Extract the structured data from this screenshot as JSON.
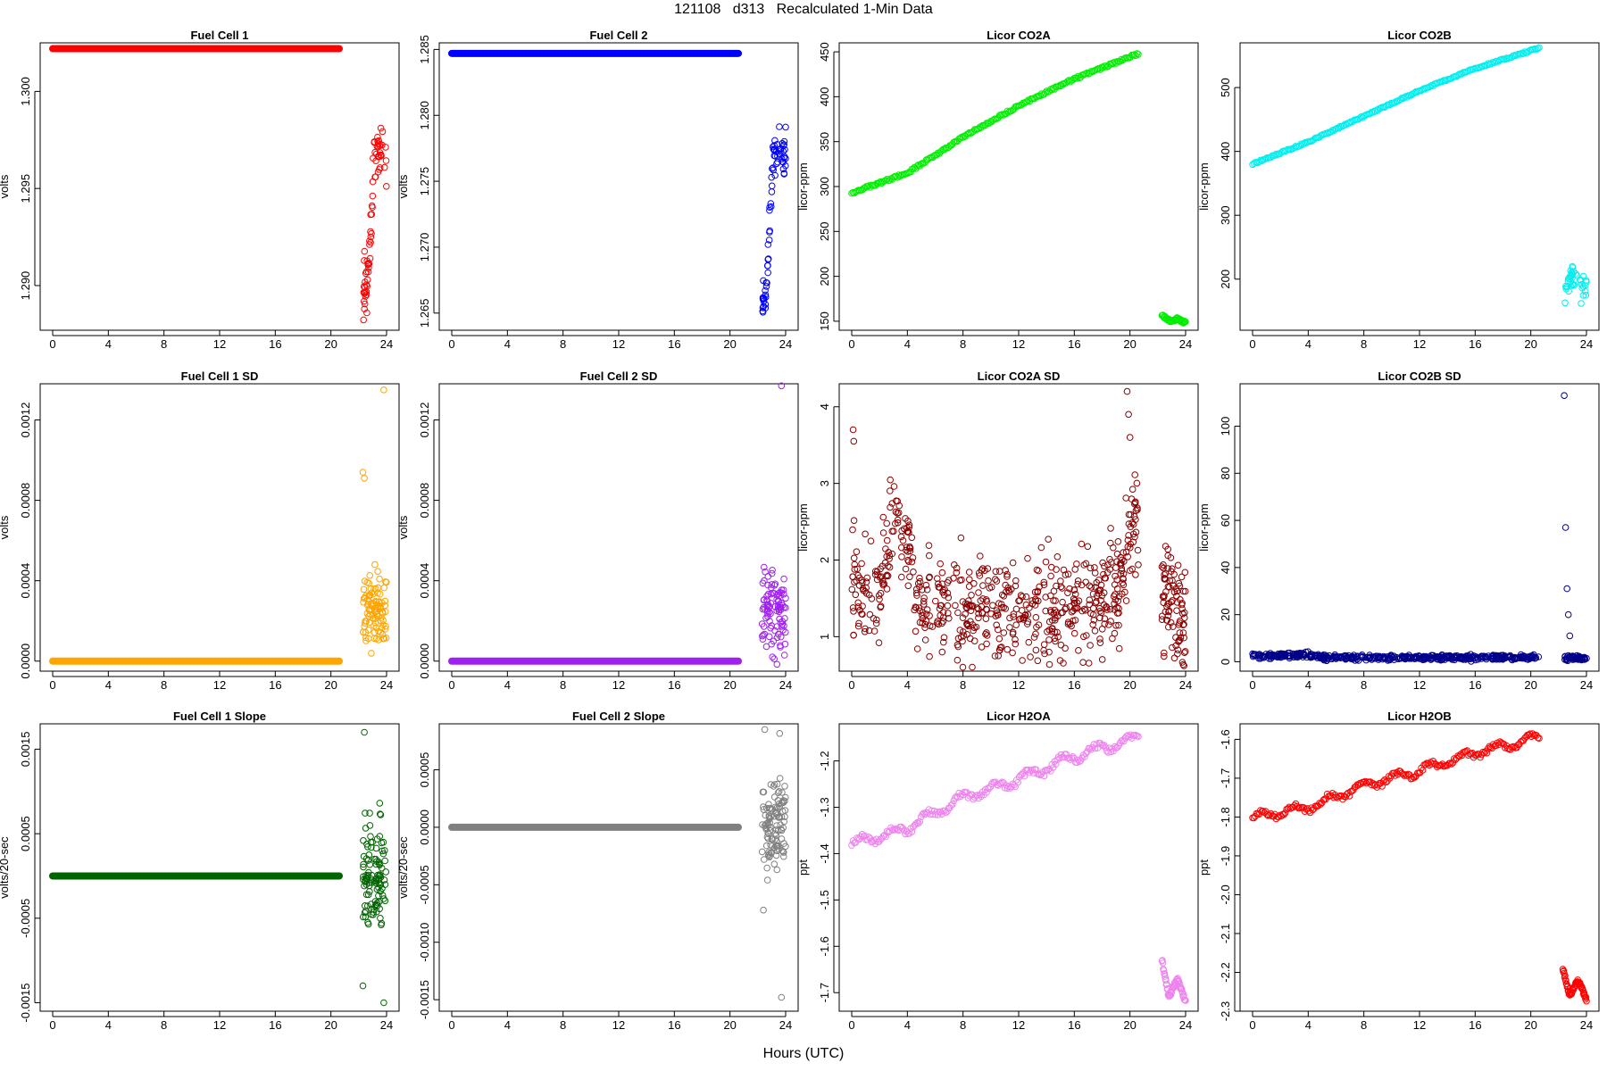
{
  "figure": {
    "title": "121108   d313   Recalculated 1-Min Data",
    "xlabel": "Hours (UTC)"
  },
  "chart_data": [
    {
      "id": "fc1",
      "type": "scatter",
      "title": "Fuel Cell 1",
      "ylabel": "volts",
      "color": "#ff0000",
      "xlim": [
        0,
        24
      ],
      "ylim": [
        1.2877,
        1.3025
      ],
      "xticks": [
        0,
        4,
        8,
        12,
        16,
        20,
        24
      ],
      "yticks": [
        1.29,
        1.295,
        1.3
      ],
      "ytick_labels": [
        "1.290",
        "1.295",
        "1.300"
      ],
      "series": [
        {
          "kind": "solid",
          "x0": 0,
          "x1": 20.6,
          "y": 1.3022
        },
        {
          "kind": "cloud",
          "seed": 11,
          "n": 75,
          "x0": 22.3,
          "x1": 24,
          "profile": [
            [
              22.3,
              1.2885
            ],
            [
              22.6,
              1.2905
            ],
            [
              22.9,
              1.2935
            ],
            [
              23.1,
              1.2968
            ],
            [
              23.5,
              1.2968
            ],
            [
              24,
              1.2965
            ]
          ],
          "spread": 0.0007
        }
      ]
    },
    {
      "id": "fc2",
      "type": "scatter",
      "title": "Fuel Cell 2",
      "ylabel": "volts",
      "color": "#0000ff",
      "xlim": [
        0,
        24
      ],
      "ylim": [
        1.2637,
        1.2855
      ],
      "xticks": [
        0,
        4,
        8,
        12,
        16,
        20,
        24
      ],
      "yticks": [
        1.265,
        1.27,
        1.275,
        1.28,
        1.285
      ],
      "ytick_labels": [
        "1.265",
        "1.270",
        "1.275",
        "1.280",
        "1.285"
      ],
      "series": [
        {
          "kind": "solid",
          "x0": 0,
          "x1": 20.6,
          "y": 1.2847
        },
        {
          "kind": "cloud",
          "seed": 23,
          "n": 75,
          "x0": 22.3,
          "x1": 24,
          "profile": [
            [
              22.3,
              1.265
            ],
            [
              22.6,
              1.2675
            ],
            [
              22.9,
              1.273
            ],
            [
              23.1,
              1.277
            ],
            [
              23.5,
              1.2773
            ],
            [
              24,
              1.2773
            ]
          ],
          "spread": 0.0008
        }
      ]
    },
    {
      "id": "co2a",
      "type": "scatter",
      "title": "Licor CO2A",
      "ylabel": "licor-ppm",
      "color": "#00ee00",
      "xlim": [
        0,
        24
      ],
      "ylim": [
        140,
        460
      ],
      "xticks": [
        0,
        4,
        8,
        12,
        16,
        20,
        24
      ],
      "yticks": [
        150,
        200,
        250,
        300,
        350,
        400,
        450
      ],
      "ytick_labels": [
        "150",
        "200",
        "250",
        "300",
        "350",
        "400",
        "450"
      ],
      "series": [
        {
          "kind": "trend",
          "x0": 0,
          "x1": 20.6,
          "n": 220,
          "profile": [
            [
              0,
              293
            ],
            [
              4,
              315
            ],
            [
              8,
              355
            ],
            [
              12,
              390
            ],
            [
              16,
              420
            ],
            [
              20.6,
              448
            ]
          ],
          "wiggle": 2.5
        },
        {
          "kind": "trend",
          "x0": 22.3,
          "x1": 24,
          "n": 45,
          "profile": [
            [
              22.3,
              157
            ],
            [
              22.9,
              150
            ],
            [
              23.4,
              153
            ],
            [
              24,
              148
            ]
          ],
          "wiggle": 3
        }
      ]
    },
    {
      "id": "co2b",
      "type": "scatter",
      "title": "Licor CO2B",
      "ylabel": "licor-ppm",
      "color": "#00eeee",
      "xlim": [
        0,
        24
      ],
      "ylim": [
        120,
        570
      ],
      "xticks": [
        0,
        4,
        8,
        12,
        16,
        20,
        24
      ],
      "yticks": [
        200,
        300,
        400,
        500
      ],
      "ytick_labels": [
        "200",
        "300",
        "400",
        "500"
      ],
      "series": [
        {
          "kind": "trend",
          "x0": 0,
          "x1": 20.6,
          "n": 220,
          "profile": [
            [
              0,
              380
            ],
            [
              4,
              415
            ],
            [
              8,
              455
            ],
            [
              12,
              495
            ],
            [
              16,
              530
            ],
            [
              20.6,
              562
            ]
          ],
          "wiggle": 2.5
        },
        {
          "kind": "cloud",
          "seed": 37,
          "n": 40,
          "x0": 22.4,
          "x1": 24,
          "profile": [
            [
              22.4,
              165
            ],
            [
              22.9,
              205
            ],
            [
              23.4,
              190
            ],
            [
              24,
              180
            ]
          ],
          "spread": 12
        }
      ]
    },
    {
      "id": "fc1sd",
      "type": "scatter",
      "title": "Fuel Cell 1 SD",
      "ylabel": "volts",
      "color": "#ffa500",
      "xlim": [
        0,
        24
      ],
      "ylim": [
        -5e-05,
        0.00138
      ],
      "xticks": [
        0,
        4,
        8,
        12,
        16,
        20,
        24
      ],
      "yticks": [
        0,
        0.0004,
        0.0008,
        0.0012
      ],
      "ytick_labels": [
        "0.0000",
        "0.0004",
        "0.0008",
        "0.0012"
      ],
      "series": [
        {
          "kind": "solid",
          "x0": 0,
          "x1": 20.6,
          "y": 0.0
        },
        {
          "kind": "cloud",
          "seed": 41,
          "n": 100,
          "x0": 22.3,
          "x1": 24,
          "profile": [
            [
              22.3,
              0.00025
            ],
            [
              24,
              0.00025
            ]
          ],
          "spread": 9e-05
        },
        {
          "kind": "points",
          "x": [
            22.3,
            22.4,
            23.8
          ],
          "y": [
            0.00094,
            0.00091,
            0.00135
          ]
        }
      ]
    },
    {
      "id": "fc2sd",
      "type": "scatter",
      "title": "Fuel Cell 2 SD",
      "ylabel": "volts",
      "color": "#a020f0",
      "xlim": [
        0,
        24
      ],
      "ylim": [
        -5e-05,
        0.00138
      ],
      "xticks": [
        0,
        4,
        8,
        12,
        16,
        20,
        24
      ],
      "yticks": [
        0,
        0.0004,
        0.0008,
        0.0012
      ],
      "ytick_labels": [
        "0.0000",
        "0.0004",
        "0.0008",
        "0.0012"
      ],
      "series": [
        {
          "kind": "solid",
          "x0": 0,
          "x1": 20.6,
          "y": 0.0
        },
        {
          "kind": "cloud",
          "seed": 53,
          "n": 100,
          "x0": 22.3,
          "x1": 24,
          "profile": [
            [
              22.3,
              0.00025
            ],
            [
              24,
              0.00025
            ]
          ],
          "spread": 0.0001
        },
        {
          "kind": "points",
          "x": [
            23.7
          ],
          "y": [
            0.00137
          ]
        }
      ]
    },
    {
      "id": "co2asd",
      "type": "scatter",
      "title": "Licor CO2A SD",
      "ylabel": "licor-ppm",
      "color": "#8b0000",
      "xlim": [
        0,
        24
      ],
      "ylim": [
        0.55,
        4.3
      ],
      "xticks": [
        0,
        4,
        8,
        12,
        16,
        20,
        24
      ],
      "yticks": [
        1,
        2,
        3,
        4
      ],
      "ytick_labels": [
        "1",
        "2",
        "3",
        "4"
      ],
      "series": [
        {
          "kind": "cloud",
          "seed": 61,
          "n": 620,
          "x0": 0,
          "x1": 20.6,
          "profile": [
            [
              0,
              1.6
            ],
            [
              2,
              1.6
            ],
            [
              3,
              2.6
            ],
            [
              4,
              2.2
            ],
            [
              5,
              1.4
            ],
            [
              12,
              1.35
            ],
            [
              18,
              1.5
            ],
            [
              19.5,
              1.7
            ],
            [
              20.3,
              2.6
            ],
            [
              20.6,
              2.5
            ]
          ],
          "spread": 0.35
        },
        {
          "kind": "cloud",
          "seed": 67,
          "n": 90,
          "x0": 22.3,
          "x1": 24,
          "profile": [
            [
              22.3,
              1.6
            ],
            [
              24,
              1.1
            ]
          ],
          "spread": 0.4
        },
        {
          "kind": "points",
          "x": [
            0.1,
            0.15,
            19.8,
            19.9,
            20.0
          ],
          "y": [
            3.7,
            3.55,
            4.2,
            3.9,
            3.6
          ]
        }
      ]
    },
    {
      "id": "co2bsd",
      "type": "scatter",
      "title": "Licor CO2B SD",
      "ylabel": "licor-ppm",
      "color": "#00008b",
      "xlim": [
        0,
        24
      ],
      "ylim": [
        -4,
        118
      ],
      "xticks": [
        0,
        4,
        8,
        12,
        16,
        20,
        24
      ],
      "yticks": [
        0,
        20,
        40,
        60,
        80,
        100
      ],
      "ytick_labels": [
        "0",
        "20",
        "40",
        "60",
        "80",
        "100"
      ],
      "series": [
        {
          "kind": "cloud",
          "seed": 71,
          "n": 500,
          "x0": 0,
          "x1": 20.6,
          "profile": [
            [
              0,
              2.5
            ],
            [
              4,
              2.8
            ],
            [
              5,
              1.8
            ],
            [
              20.6,
              1.8
            ]
          ],
          "spread": 0.5
        },
        {
          "kind": "cloud",
          "seed": 73,
          "n": 60,
          "x0": 22.4,
          "x1": 24,
          "profile": [
            [
              22.4,
              2
            ],
            [
              24,
              1.5
            ]
          ],
          "spread": 0.5
        },
        {
          "kind": "points",
          "x": [
            22.4,
            22.5,
            22.6,
            22.7,
            22.8
          ],
          "y": [
            113,
            57,
            31,
            20,
            11
          ]
        }
      ]
    },
    {
      "id": "fc1slope",
      "type": "scatter",
      "title": "Fuel Cell 1 Slope",
      "ylabel": "volts/20-sec",
      "color": "#006400",
      "xlim": [
        0,
        24
      ],
      "ylim": [
        -0.0016,
        0.0018
      ],
      "xticks": [
        0,
        4,
        8,
        12,
        16,
        20,
        24
      ],
      "yticks": [
        -0.0015,
        -0.0005,
        0.0005,
        0.0015
      ],
      "ytick_labels": [
        "-0.0015",
        "-0.0005",
        "0.0005",
        "0.0015"
      ],
      "series": [
        {
          "kind": "solid",
          "x0": 0,
          "x1": 20.6,
          "y": 0.0
        },
        {
          "kind": "cloud",
          "seed": 83,
          "n": 110,
          "x0": 22.3,
          "x1": 24,
          "profile": [
            [
              22.3,
              0
            ],
            [
              24,
              0
            ]
          ],
          "spread": 0.0003
        },
        {
          "kind": "points",
          "x": [
            22.4,
            22.3,
            23.8
          ],
          "y": [
            0.0017,
            -0.0013,
            -0.0015
          ]
        }
      ]
    },
    {
      "id": "fc2slope",
      "type": "scatter",
      "title": "Fuel Cell 2 Slope",
      "ylabel": "volts/20-sec",
      "color": "#808080",
      "xlim": [
        0,
        24
      ],
      "ylim": [
        -0.0016,
        0.0009
      ],
      "xticks": [
        0,
        4,
        8,
        12,
        16,
        20,
        24
      ],
      "yticks": [
        -0.0015,
        -0.001,
        -0.0005,
        0.0,
        0.0005
      ],
      "ytick_labels": [
        "-0.0015",
        "-0.0010",
        "-0.0005",
        "0.0000",
        "0.0005"
      ],
      "series": [
        {
          "kind": "solid",
          "x0": 0,
          "x1": 20.6,
          "y": 0.0
        },
        {
          "kind": "cloud",
          "seed": 89,
          "n": 110,
          "x0": 22.3,
          "x1": 24,
          "profile": [
            [
              22.3,
              0
            ],
            [
              24,
              0
            ]
          ],
          "spread": 0.00022
        },
        {
          "kind": "points",
          "x": [
            22.5,
            23.7,
            22.4
          ],
          "y": [
            0.00085,
            -0.00148,
            -0.00072
          ]
        }
      ]
    },
    {
      "id": "h2oa",
      "type": "scatter",
      "title": "Licor H2OA",
      "ylabel": "ppt",
      "color": "#ee82ee",
      "xlim": [
        0,
        24
      ],
      "ylim": [
        -1.74,
        -1.12
      ],
      "xticks": [
        0,
        4,
        8,
        12,
        16,
        20,
        24
      ],
      "yticks": [
        -1.7,
        -1.6,
        -1.5,
        -1.4,
        -1.3,
        -1.2
      ],
      "ytick_labels": [
        "-1.7",
        "-1.6",
        "-1.5",
        "-1.4",
        "-1.3",
        "-1.2"
      ],
      "series": [
        {
          "kind": "trend",
          "x0": 0,
          "x1": 20.6,
          "n": 220,
          "profile": [
            [
              0,
              -1.38
            ],
            [
              4,
              -1.345
            ],
            [
              8,
              -1.28
            ],
            [
              12,
              -1.24
            ],
            [
              16,
              -1.19
            ],
            [
              20.6,
              -1.15
            ]
          ],
          "wiggle": 0.012,
          "wave": 0.01
        },
        {
          "kind": "trend",
          "x0": 22.3,
          "x1": 24,
          "n": 55,
          "profile": [
            [
              22.3,
              -1.63
            ],
            [
              22.8,
              -1.71
            ],
            [
              23.4,
              -1.67
            ],
            [
              24,
              -1.72
            ]
          ],
          "wiggle": 0.01
        }
      ]
    },
    {
      "id": "h2ob",
      "type": "scatter",
      "title": "Licor H2OB",
      "ylabel": "ppt",
      "color": "#ff0000",
      "xlim": [
        0,
        24
      ],
      "ylim": [
        -2.3,
        -1.56
      ],
      "xticks": [
        0,
        4,
        8,
        12,
        16,
        20,
        24
      ],
      "yticks": [
        -2.3,
        -2.2,
        -2.1,
        -2.0,
        -1.9,
        -1.8,
        -1.7,
        -1.6
      ],
      "ytick_labels": [
        "-2.3",
        "-2.2",
        "-2.1",
        "-2.0",
        "-1.9",
        "-1.8",
        "-1.7",
        "-1.6"
      ],
      "series": [
        {
          "kind": "trend",
          "x0": 0,
          "x1": 20.6,
          "n": 220,
          "profile": [
            [
              0,
              -1.8
            ],
            [
              4,
              -1.775
            ],
            [
              8,
              -1.72
            ],
            [
              12,
              -1.68
            ],
            [
              16,
              -1.635
            ],
            [
              20.6,
              -1.595
            ]
          ],
          "wiggle": 0.012,
          "wave": 0.01
        },
        {
          "kind": "trend",
          "x0": 22.3,
          "x1": 24,
          "n": 55,
          "profile": [
            [
              22.3,
              -2.19
            ],
            [
              22.8,
              -2.26
            ],
            [
              23.4,
              -2.22
            ],
            [
              24,
              -2.27
            ]
          ],
          "wiggle": 0.01
        }
      ]
    }
  ]
}
